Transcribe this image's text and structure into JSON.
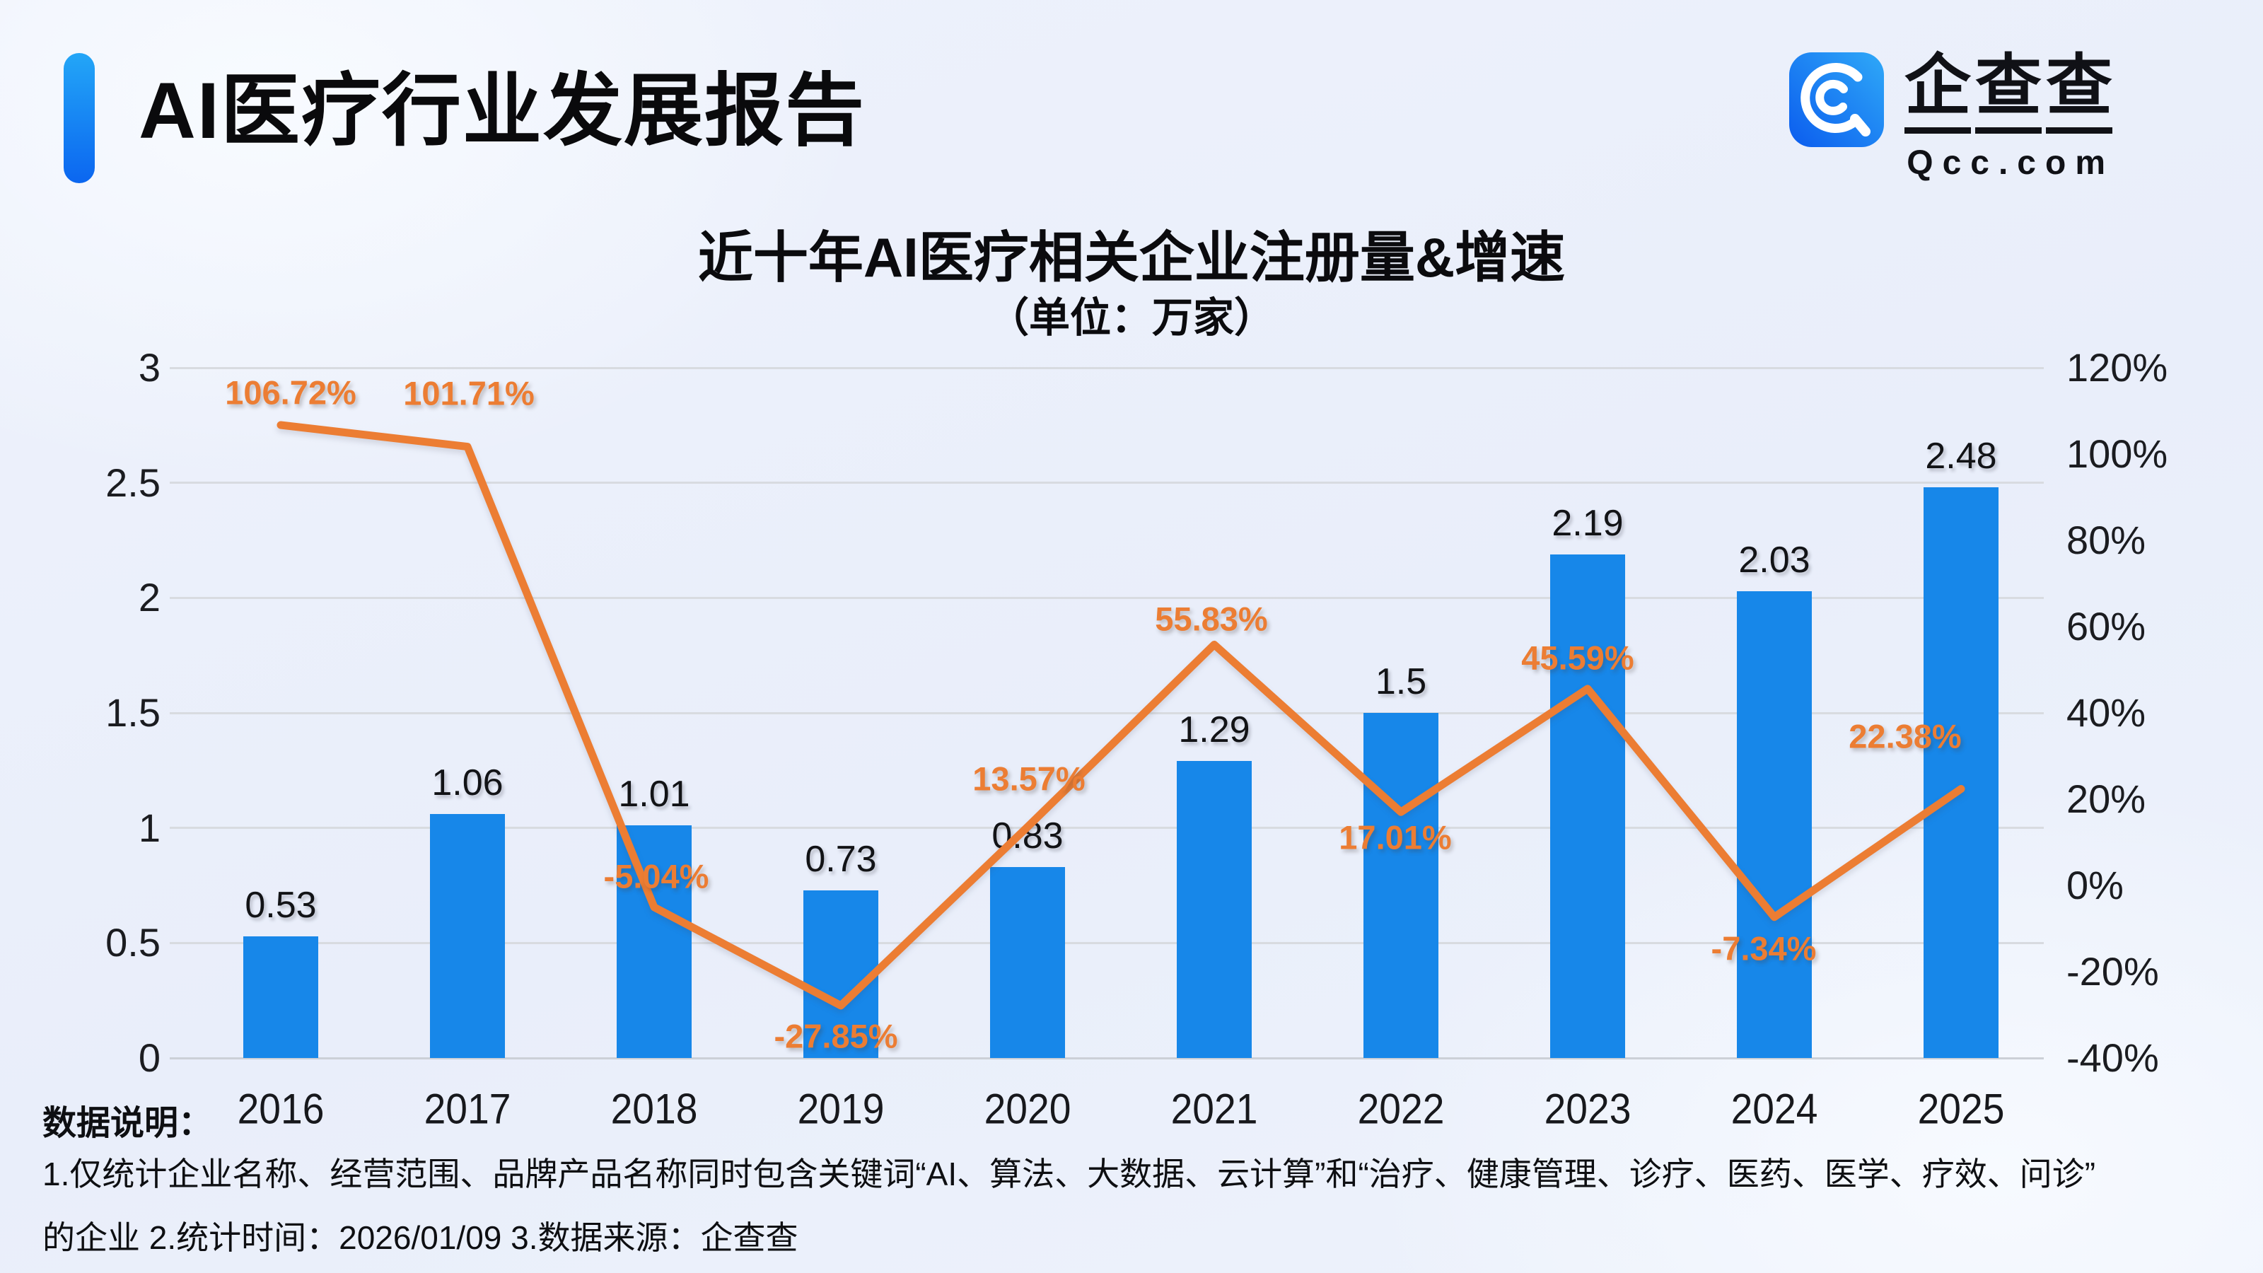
{
  "header": {
    "title": "AI医疗行业发展报告",
    "brand": {
      "name": "企查查",
      "chars": [
        "企",
        "查",
        "查"
      ],
      "domain": "Qcc.com"
    }
  },
  "chart": {
    "title": "近十年AI医疗相关企业注册量&增速",
    "subtitle": "（单位：万家）"
  },
  "chart_data": {
    "type": "bar+line",
    "title": "近十年AI医疗相关企业注册量&增速",
    "subtitle": "（单位：万家）",
    "categories": [
      "2016",
      "2017",
      "2018",
      "2019",
      "2020",
      "2021",
      "2022",
      "2023",
      "2024",
      "2025"
    ],
    "series": [
      {
        "type": "bar",
        "axis": "left",
        "color": "#1787e9",
        "values": [
          0.53,
          1.06,
          1.01,
          0.73,
          0.83,
          1.29,
          1.5,
          2.19,
          2.03,
          2.48
        ],
        "labels": [
          "0.53",
          "1.06",
          "1.01",
          "0.73",
          "0.83",
          "1.29",
          "1.5",
          "2.19",
          "2.03",
          "2.48"
        ]
      },
      {
        "type": "line",
        "axis": "right",
        "color": "#ec7d33",
        "values": [
          106.72,
          101.71,
          -5.04,
          -27.85,
          13.57,
          55.83,
          17.01,
          45.59,
          -7.34,
          22.38
        ],
        "labels": [
          "106.72%",
          "101.71%",
          "-5.04%",
          "-27.85%",
          "13.57%",
          "55.83%",
          "17.01%",
          "45.59%",
          "-7.34%",
          "22.38%"
        ]
      }
    ],
    "left_axis": {
      "min": 0,
      "max": 3,
      "tick_values": [
        3,
        2.5,
        2,
        1.5,
        1,
        0.5,
        0
      ],
      "tick_labels": [
        "3",
        "2.5",
        "2",
        "1.5",
        "1",
        "0.5",
        "0"
      ]
    },
    "right_axis": {
      "min": -40,
      "max": 120,
      "tick_values": [
        120,
        100,
        80,
        60,
        40,
        20,
        0,
        -20,
        -40
      ],
      "tick_labels": [
        "120%",
        "100%",
        "80%",
        "60%",
        "40%",
        "20%",
        "0%",
        "-20%",
        "-40%"
      ]
    },
    "grid": true,
    "legend": "none"
  },
  "footer": {
    "label": "数据说明：",
    "line1": "1.仅统计企业名称、经营范围、品牌产品名称同时包含关键词“AI、算法、大数据、云计算”和“治疗、健康管理、诊疗、医药、医学、疗效、问诊”",
    "line2": "的企业  2.统计时间：2026/01/09   3.数据来源：企查查"
  }
}
